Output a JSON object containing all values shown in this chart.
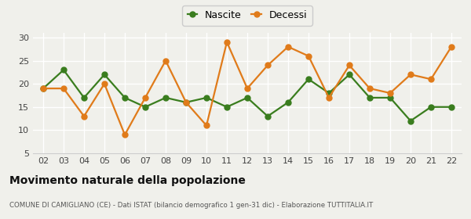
{
  "years": [
    "02",
    "03",
    "04",
    "05",
    "06",
    "07",
    "08",
    "09",
    "10",
    "11",
    "12",
    "13",
    "14",
    "15",
    "16",
    "17",
    "18",
    "19",
    "20",
    "21",
    "22"
  ],
  "nascite": [
    19,
    23,
    17,
    22,
    17,
    15,
    17,
    16,
    17,
    15,
    17,
    13,
    16,
    21,
    18,
    22,
    17,
    17,
    12,
    15,
    15
  ],
  "decessi": [
    19,
    19,
    13,
    20,
    9,
    17,
    25,
    16,
    11,
    29,
    19,
    24,
    28,
    26,
    17,
    24,
    19,
    18,
    22,
    21,
    28
  ],
  "nascite_color": "#3a7d1e",
  "decessi_color": "#e07b1a",
  "background_color": "#f0f0eb",
  "grid_color": "#ffffff",
  "ylim": [
    5,
    31
  ],
  "yticks": [
    5,
    10,
    15,
    20,
    25,
    30
  ],
  "title": "Movimento naturale della popolazione",
  "subtitle": "COMUNE DI CAMIGLIANO (CE) - Dati ISTAT (bilancio demografico 1 gen-31 dic) - Elaborazione TUTTITALIA.IT",
  "legend_nascite": "Nascite",
  "legend_decessi": "Decessi",
  "marker_size": 5,
  "line_width": 1.6
}
